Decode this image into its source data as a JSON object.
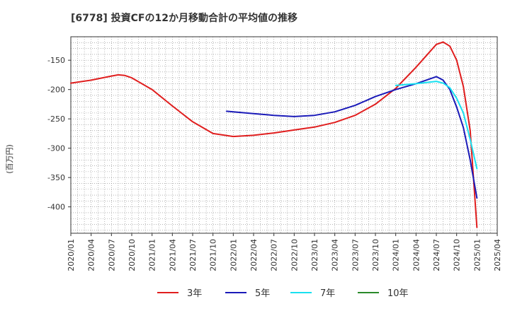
{
  "chart_data": {
    "type": "line",
    "title": "[6778]  投資CFの12か月移動合計の平均値の推移",
    "ylabel": "(百万円)",
    "xlabel": "",
    "ylim": [
      -445,
      -110
    ],
    "yticks": [
      -150,
      -200,
      -250,
      -300,
      -350,
      -400
    ],
    "x_tick_labels": [
      "2020/01",
      "2020/04",
      "2020/07",
      "2020/10",
      "2021/01",
      "2021/04",
      "2021/07",
      "2021/10",
      "2022/01",
      "2022/04",
      "2022/07",
      "2022/10",
      "2023/01",
      "2023/04",
      "2023/07",
      "2023/10",
      "2024/01",
      "2024/04",
      "2024/07",
      "2024/10",
      "2025/01",
      "2025/04"
    ],
    "grid": true,
    "legend_position": "bottom",
    "series": [
      {
        "name": "3年",
        "color": "#e01e1e",
        "points": [
          [
            "2020/01",
            -189
          ],
          [
            "2020/04",
            -184
          ],
          [
            "2020/07",
            -177
          ],
          [
            "2020/08",
            -175
          ],
          [
            "2020/09",
            -176
          ],
          [
            "2020/10",
            -180
          ],
          [
            "2021/01",
            -200
          ],
          [
            "2021/04",
            -228
          ],
          [
            "2021/07",
            -255
          ],
          [
            "2021/10",
            -275
          ],
          [
            "2022/01",
            -280
          ],
          [
            "2022/04",
            -278
          ],
          [
            "2022/07",
            -274
          ],
          [
            "2022/10",
            -269
          ],
          [
            "2023/01",
            -264
          ],
          [
            "2023/04",
            -256
          ],
          [
            "2023/07",
            -244
          ],
          [
            "2023/10",
            -225
          ],
          [
            "2024/01",
            -198
          ],
          [
            "2024/04",
            -162
          ],
          [
            "2024/07",
            -123
          ],
          [
            "2024/08",
            -119
          ],
          [
            "2024/09",
            -126
          ],
          [
            "2024/10",
            -150
          ],
          [
            "2024/11",
            -195
          ],
          [
            "2024/12",
            -270
          ],
          [
            "2025/01",
            -435
          ]
        ]
      },
      {
        "name": "5年",
        "color": "#1a1ab8",
        "points": [
          [
            "2021/12",
            -237
          ],
          [
            "2022/04",
            -241
          ],
          [
            "2022/07",
            -244
          ],
          [
            "2022/10",
            -246
          ],
          [
            "2023/01",
            -244
          ],
          [
            "2023/04",
            -238
          ],
          [
            "2023/07",
            -227
          ],
          [
            "2023/10",
            -212
          ],
          [
            "2024/01",
            -200
          ],
          [
            "2024/04",
            -190
          ],
          [
            "2024/07",
            -178
          ],
          [
            "2024/08",
            -184
          ],
          [
            "2024/09",
            -200
          ],
          [
            "2024/10",
            -230
          ],
          [
            "2024/11",
            -265
          ],
          [
            "2024/12",
            -320
          ],
          [
            "2025/01",
            -385
          ]
        ]
      },
      {
        "name": "7年",
        "color": "#19e0f0",
        "points": [
          [
            "2024/01",
            -193
          ],
          [
            "2024/04",
            -190
          ],
          [
            "2024/07",
            -186
          ],
          [
            "2024/08",
            -189
          ],
          [
            "2024/09",
            -197
          ],
          [
            "2024/10",
            -215
          ],
          [
            "2024/11",
            -240
          ],
          [
            "2024/12",
            -285
          ],
          [
            "2025/01",
            -335
          ]
        ]
      },
      {
        "name": "10年",
        "color": "#2a8a2a",
        "points": []
      }
    ]
  }
}
